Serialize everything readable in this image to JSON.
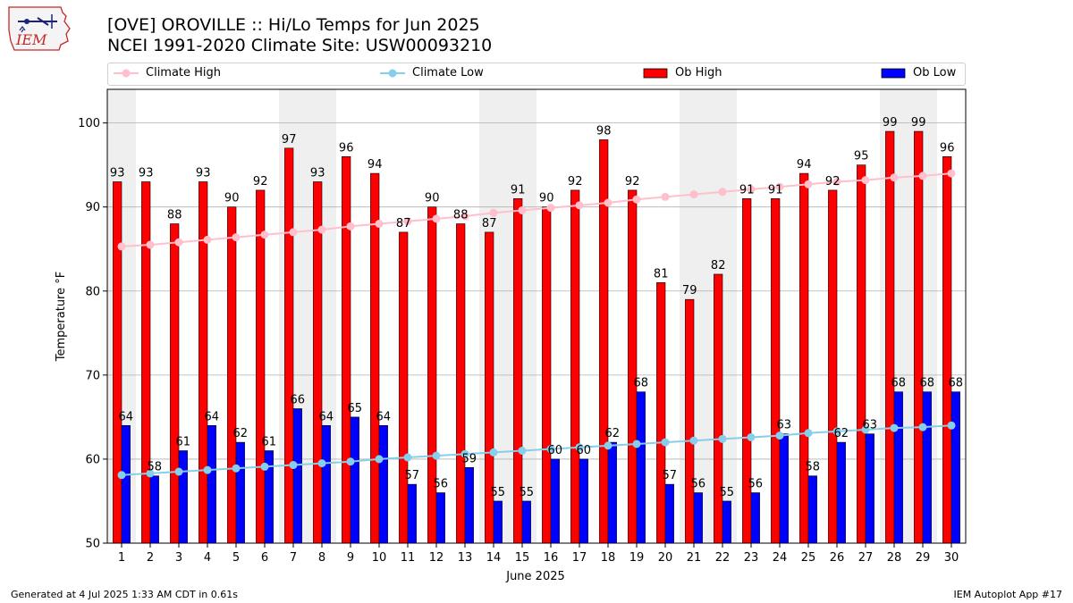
{
  "logo": {
    "text": "IEM"
  },
  "header": {
    "title_line1": "[OVE] OROVILLE :: Hi/Lo Temps for Jun 2025",
    "title_line2": "NCEI 1991-2020 Climate Site: USW00093210"
  },
  "legend": {
    "items": [
      "Climate High",
      "Climate Low",
      "Ob High",
      "Ob Low"
    ],
    "placement": "top, above plot"
  },
  "footer": {
    "left": "Generated at 4 Jul 2025 1:33 AM CDT in 0.61s",
    "right": "IEM Autoplot App #17"
  },
  "colors": {
    "ob_high": "#ff0000",
    "ob_low": "#0000ff",
    "climate_high": "#ffc0cb",
    "climate_low": "#87ceeb",
    "weekend_shade": "#efefef",
    "grid": "#b0b0b0"
  },
  "chart_data": {
    "type": "bar",
    "xlabel": "June 2025",
    "ylabel": "Temperature °F",
    "ylim": [
      50,
      104
    ],
    "yticks": [
      50,
      60,
      70,
      80,
      90,
      100
    ],
    "grid": true,
    "x": [
      1,
      2,
      3,
      4,
      5,
      6,
      7,
      8,
      9,
      10,
      11,
      12,
      13,
      14,
      15,
      16,
      17,
      18,
      19,
      20,
      21,
      22,
      23,
      24,
      25,
      26,
      27,
      28,
      29,
      30
    ],
    "shaded_weekend_days": [
      1,
      7,
      8,
      14,
      15,
      21,
      22,
      28,
      29
    ],
    "series": [
      {
        "name": "Ob High",
        "type": "bar",
        "values": [
          93,
          93,
          88,
          93,
          90,
          92,
          97,
          93,
          96,
          94,
          87,
          90,
          88,
          87,
          91,
          90,
          92,
          98,
          92,
          81,
          79,
          82,
          91,
          91,
          94,
          92,
          95,
          99,
          99,
          96
        ]
      },
      {
        "name": "Ob Low",
        "type": "bar",
        "values": [
          64,
          58,
          61,
          64,
          62,
          61,
          66,
          64,
          65,
          64,
          57,
          56,
          59,
          55,
          55,
          60,
          60,
          62,
          68,
          57,
          56,
          55,
          56,
          63,
          58,
          62,
          63,
          68,
          68,
          68
        ]
      },
      {
        "name": "Climate High",
        "type": "line",
        "values": [
          85.3,
          85.5,
          85.8,
          86.1,
          86.4,
          86.7,
          87.0,
          87.3,
          87.7,
          88.0,
          88.3,
          88.6,
          88.9,
          89.3,
          89.6,
          89.9,
          90.2,
          90.5,
          90.9,
          91.2,
          91.5,
          91.8,
          92.1,
          92.4,
          92.7,
          93.0,
          93.2,
          93.5,
          93.7,
          94.0
        ]
      },
      {
        "name": "Climate Low",
        "type": "line",
        "values": [
          58.1,
          58.3,
          58.5,
          58.7,
          58.9,
          59.1,
          59.3,
          59.5,
          59.7,
          60.0,
          60.2,
          60.4,
          60.6,
          60.8,
          61.0,
          61.2,
          61.4,
          61.6,
          61.8,
          62.0,
          62.2,
          62.4,
          62.6,
          62.8,
          63.1,
          63.3,
          63.5,
          63.7,
          63.8,
          64.0
        ]
      }
    ]
  }
}
